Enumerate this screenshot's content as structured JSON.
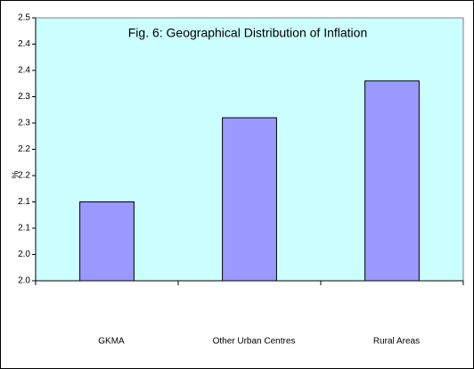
{
  "chart_data": {
    "type": "bar",
    "title": "Fig. 6: Geographical Distribution of Inflation",
    "y_label": "%",
    "categories": [
      "GKMA",
      "Other Urban Centres",
      "Rural Areas"
    ],
    "values": [
      2.15,
      2.31,
      2.38
    ],
    "color": "#9999ff",
    "plot_background": "#ccffff",
    "ylim": [
      2.0,
      2.5
    ],
    "yticks": [
      {
        "value": 2.0,
        "label": "2.0"
      },
      {
        "value": 2.05,
        "label": "2.0"
      },
      {
        "value": 2.1,
        "label": "2.1"
      },
      {
        "value": 2.15,
        "label": "2.1"
      },
      {
        "value": 2.2,
        "label": "2.2"
      },
      {
        "value": 2.25,
        "label": "2.2"
      },
      {
        "value": 2.3,
        "label": "2.3"
      },
      {
        "value": 2.35,
        "label": "2.3"
      },
      {
        "value": 2.4,
        "label": "2.4"
      },
      {
        "value": 2.45,
        "label": "2.4"
      },
      2.5
    ]
  }
}
